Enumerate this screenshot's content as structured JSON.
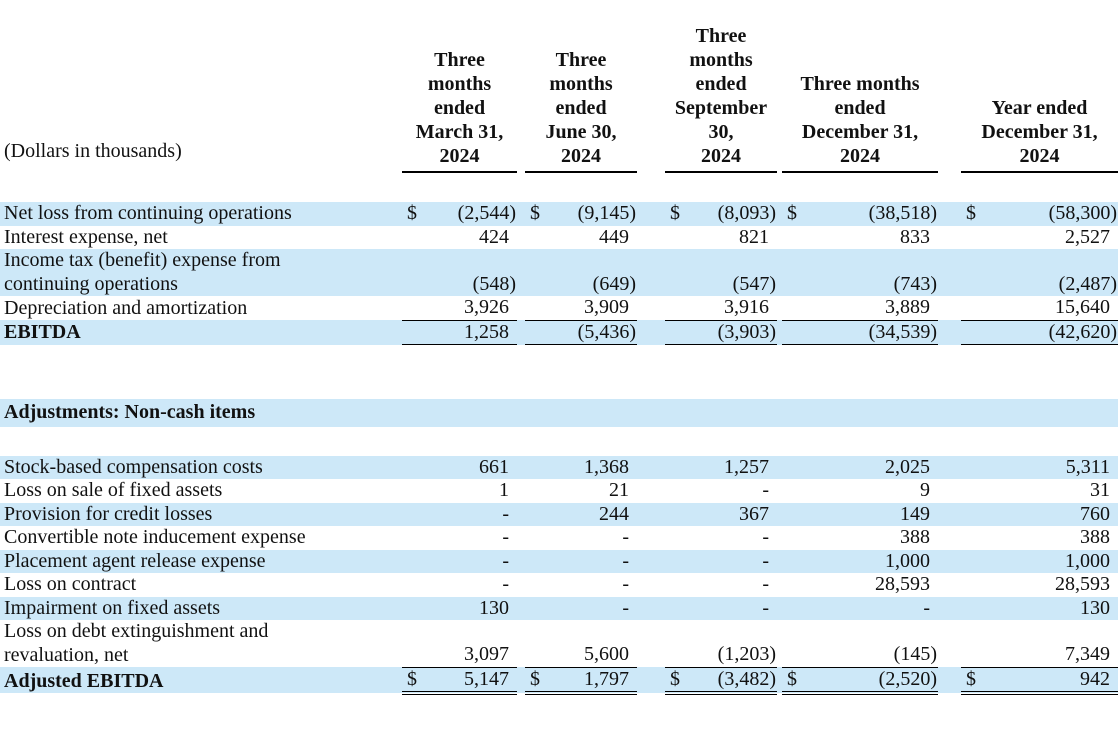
{
  "colors": {
    "row_highlight": "#cde8f8",
    "text": "#111111",
    "rule": "#000000"
  },
  "table": {
    "unit_label": "(Dollars in thousands)",
    "columns": [
      {
        "header_lines": [
          "Three",
          "months",
          "ended",
          "March 31,",
          "2024"
        ]
      },
      {
        "header_lines": [
          "Three",
          "months",
          "ended",
          "June 30,",
          "2024"
        ]
      },
      {
        "header_lines": [
          "Three",
          "months",
          "ended",
          "September",
          "30,",
          "2024"
        ]
      },
      {
        "header_lines": [
          "Three months",
          "ended",
          "December 31,",
          "2024"
        ]
      },
      {
        "header_lines": [
          "Year ended",
          "December 31,",
          "2024"
        ]
      }
    ],
    "rows": [
      {
        "type": "data",
        "bg": "blue",
        "dollar": true,
        "label_lines": [
          "Net loss from continuing operations"
        ],
        "values": [
          "(2,544)",
          "(9,145)",
          "(8,093)",
          "(38,518)",
          "(58,300)"
        ]
      },
      {
        "type": "data",
        "bg": "white",
        "label_lines": [
          "Interest expense, net"
        ],
        "values": [
          "424",
          "449",
          "821",
          "833",
          "2,527"
        ]
      },
      {
        "type": "data",
        "bg": "blue",
        "label_lines": [
          "Income tax (benefit) expense from",
          "continuing operations"
        ],
        "values": [
          "(548)",
          "(649)",
          "(547)",
          "(743)",
          "(2,487)"
        ]
      },
      {
        "type": "data",
        "bg": "white",
        "underline": "single",
        "label_lines": [
          "Depreciation and amortization"
        ],
        "values": [
          "3,926",
          "3,909",
          "3,916",
          "3,889",
          "15,640"
        ]
      },
      {
        "type": "data",
        "bg": "blue",
        "bold": true,
        "underline": "single",
        "label_lines": [
          "EBITDA"
        ],
        "values": [
          "1,258",
          "(5,436)",
          "(3,903)",
          "(34,539)",
          "(42,620)"
        ]
      },
      {
        "type": "gap",
        "size": "lg"
      },
      {
        "type": "section",
        "bg": "blue",
        "label": "Adjustments: Non-cash items"
      },
      {
        "type": "gap",
        "size": "md"
      },
      {
        "type": "data",
        "bg": "blue",
        "label_lines": [
          "Stock-based compensation costs"
        ],
        "values": [
          "661",
          "1,368",
          "1,257",
          "2,025",
          "5,311"
        ]
      },
      {
        "type": "data",
        "bg": "white",
        "label_lines": [
          "Loss on sale of fixed assets"
        ],
        "values": [
          "1",
          "21",
          "-",
          "9",
          "31"
        ]
      },
      {
        "type": "data",
        "bg": "blue",
        "label_lines": [
          "Provision for credit losses"
        ],
        "values": [
          "-",
          "244",
          "367",
          "149",
          "760"
        ]
      },
      {
        "type": "data",
        "bg": "white",
        "label_lines": [
          "Convertible note inducement expense"
        ],
        "values": [
          "-",
          "-",
          "-",
          "388",
          "388"
        ]
      },
      {
        "type": "data",
        "bg": "blue",
        "label_lines": [
          "Placement agent release expense"
        ],
        "values": [
          "-",
          "-",
          "-",
          "1,000",
          "1,000"
        ]
      },
      {
        "type": "data",
        "bg": "white",
        "label_lines": [
          "Loss on contract"
        ],
        "values": [
          "-",
          "-",
          "-",
          "28,593",
          "28,593"
        ]
      },
      {
        "type": "data",
        "bg": "blue",
        "label_lines": [
          "Impairment on fixed assets"
        ],
        "values": [
          "130",
          "-",
          "-",
          "-",
          "130"
        ]
      },
      {
        "type": "data",
        "bg": "white",
        "underline": "single",
        "label_lines": [
          "Loss on debt extinguishment and",
          "revaluation, net"
        ],
        "values": [
          "3,097",
          "5,600",
          "(1,203)",
          "(145)",
          "7,349"
        ]
      },
      {
        "type": "data",
        "bg": "blue",
        "bold": true,
        "dollar": true,
        "underline": "double",
        "total": true,
        "label_lines": [
          "Adjusted EBITDA"
        ],
        "values": [
          "5,147",
          "1,797",
          "(3,482)",
          "(2,520)",
          "942"
        ]
      }
    ]
  }
}
